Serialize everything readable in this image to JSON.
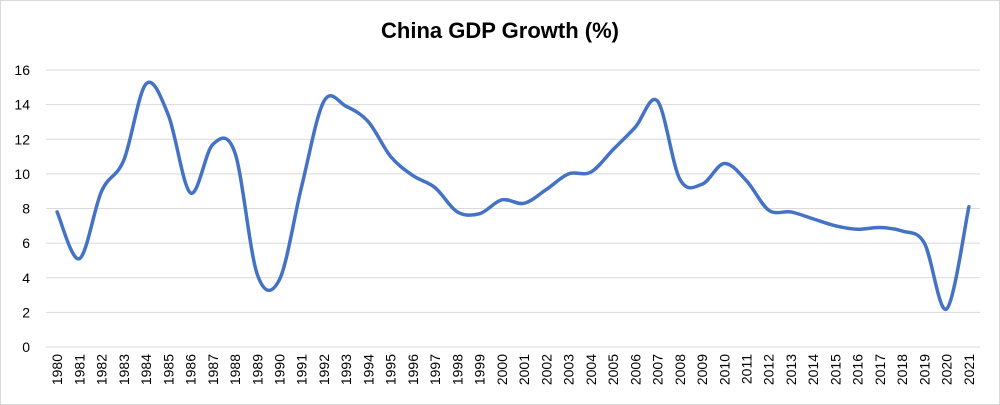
{
  "chart_data": {
    "type": "line",
    "title": "China GDP Growth (%)",
    "xlabel": "",
    "ylabel": "",
    "ylim": [
      0,
      16
    ],
    "yticks": [
      0,
      2,
      4,
      6,
      8,
      10,
      12,
      14,
      16
    ],
    "grid": true,
    "legend": "none",
    "x": [
      "1980",
      "1981",
      "1982",
      "1983",
      "1984",
      "1985",
      "1986",
      "1987",
      "1988",
      "1989",
      "1990",
      "1991",
      "1992",
      "1993",
      "1994",
      "1995",
      "1996",
      "1997",
      "1998",
      "1999",
      "2000",
      "2001",
      "2002",
      "2003",
      "2004",
      "2005",
      "2006",
      "2007",
      "2008",
      "2009",
      "2010",
      "2011",
      "2012",
      "2013",
      "2014",
      "2015",
      "2016",
      "2017",
      "2018",
      "2019",
      "2020",
      "2021"
    ],
    "series": [
      {
        "name": "China GDP Growth (%)",
        "color": "#4472C4",
        "values": [
          7.8,
          5.1,
          9.0,
          10.8,
          15.2,
          13.4,
          8.9,
          11.7,
          11.2,
          4.2,
          3.9,
          9.3,
          14.2,
          13.9,
          13.0,
          11.0,
          9.9,
          9.2,
          7.8,
          7.7,
          8.5,
          8.3,
          9.1,
          10.0,
          10.1,
          11.4,
          12.7,
          14.2,
          9.7,
          9.4,
          10.6,
          9.6,
          7.9,
          7.8,
          7.4,
          7.0,
          6.8,
          6.9,
          6.7,
          6.0,
          2.2,
          8.1
        ]
      }
    ]
  }
}
